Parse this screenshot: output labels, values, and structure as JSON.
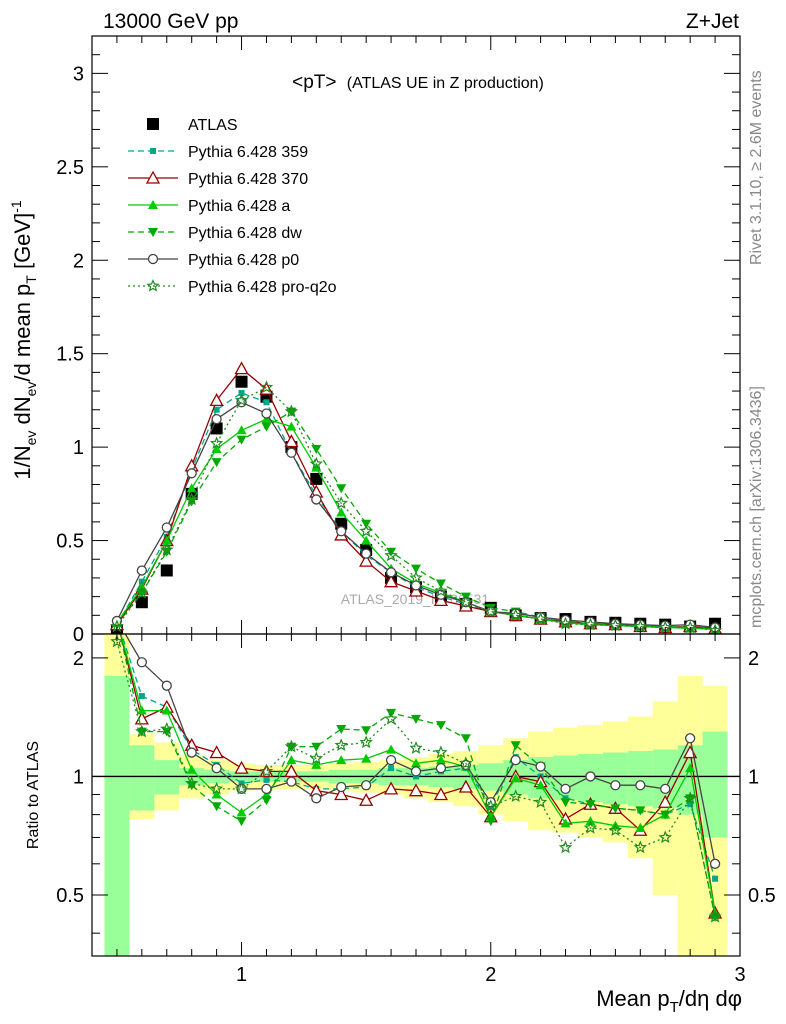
{
  "header": {
    "left": "13000 GeV pp",
    "right": "Z+Jet"
  },
  "side_labels": {
    "rivet": "Rivet 3.1.10, ≥ 2.6M events",
    "mcplots": "mcplots.cern.ch [arXiv:1306.3436]"
  },
  "watermark": "ATLAS_2019_I1736531",
  "chart_data": [
    {
      "type": "scatter",
      "panel": "main",
      "title": "<pT>",
      "subtitle": "(ATLAS UE in Z production)",
      "ylabel": "1/N_ev dN_ev/d mean p_T [GeV]^-1",
      "xlim": [
        0.4,
        3.0
      ],
      "ylim": [
        0,
        3.2
      ],
      "yticks": [
        "0",
        "0.5",
        "1",
        "1.5",
        "2",
        "2.5",
        "3"
      ],
      "legend_position": "top-left",
      "x": [
        0.5,
        0.6,
        0.7,
        0.8,
        0.9,
        1.0,
        1.1,
        1.2,
        1.3,
        1.4,
        1.5,
        1.6,
        1.7,
        1.8,
        1.9,
        2.0,
        2.1,
        2.2,
        2.3,
        2.4,
        2.5,
        2.6,
        2.7,
        2.8,
        2.9
      ],
      "series": [
        {
          "name": "ATLAS",
          "color": "#000000",
          "marker": "square",
          "line": "none",
          "values": [
            0.02,
            0.17,
            0.34,
            0.75,
            1.1,
            1.35,
            1.27,
            1.0,
            0.83,
            0.59,
            0.45,
            0.3,
            0.25,
            0.2,
            0.16,
            0.14,
            0.1,
            0.085,
            0.08,
            0.065,
            0.06,
            0.055,
            0.05,
            0.04,
            0.055
          ]
        },
        {
          "name": "Pythia 6.428 359",
          "color": "#00a88a",
          "marker": "square-small",
          "line": "dashed",
          "values": [
            0.05,
            0.28,
            0.52,
            0.88,
            1.2,
            1.29,
            1.24,
            0.97,
            0.74,
            0.55,
            0.42,
            0.33,
            0.25,
            0.2,
            0.16,
            0.12,
            0.1,
            0.08,
            0.07,
            0.055,
            0.05,
            0.045,
            0.04,
            0.035,
            0.03
          ]
        },
        {
          "name": "Pythia 6.428 370",
          "color": "#990000",
          "marker": "triangle-open",
          "line": "solid",
          "values": [
            0.05,
            0.24,
            0.5,
            0.9,
            1.25,
            1.42,
            1.31,
            1.03,
            0.76,
            0.53,
            0.39,
            0.28,
            0.23,
            0.18,
            0.15,
            0.12,
            0.1,
            0.08,
            0.065,
            0.055,
            0.05,
            0.04,
            0.035,
            0.04,
            0.03
          ]
        },
        {
          "name": "Pythia 6.428 a",
          "color": "#00cc00",
          "marker": "triangle",
          "line": "solid",
          "values": [
            0.06,
            0.25,
            0.5,
            0.78,
            0.99,
            1.09,
            1.15,
            1.11,
            0.89,
            0.65,
            0.5,
            0.35,
            0.27,
            0.22,
            0.17,
            0.12,
            0.1,
            0.08,
            0.06,
            0.05,
            0.045,
            0.04,
            0.035,
            0.03,
            0.025
          ]
        },
        {
          "name": "Pythia 6.428 dw",
          "color": "#00aa00",
          "marker": "triangle-down",
          "line": "dashed",
          "values": [
            0.05,
            0.22,
            0.44,
            0.71,
            0.92,
            1.04,
            1.11,
            1.19,
            0.99,
            0.78,
            0.59,
            0.44,
            0.35,
            0.27,
            0.2,
            0.14,
            0.12,
            0.09,
            0.07,
            0.055,
            0.05,
            0.045,
            0.04,
            0.035,
            0.03
          ]
        },
        {
          "name": "Pythia 6.428 p0",
          "color": "#444444",
          "marker": "circle-open",
          "line": "solid",
          "values": [
            0.07,
            0.34,
            0.57,
            0.86,
            1.15,
            1.24,
            1.18,
            0.97,
            0.72,
            0.55,
            0.43,
            0.33,
            0.26,
            0.21,
            0.17,
            0.12,
            0.11,
            0.09,
            0.075,
            0.065,
            0.055,
            0.05,
            0.045,
            0.05,
            0.035
          ]
        },
        {
          "name": "Pythia 6.428 pro-q2o",
          "color": "#228b22",
          "marker": "star",
          "line": "dotted",
          "values": [
            0.04,
            0.22,
            0.45,
            0.72,
            1.02,
            1.25,
            1.32,
            1.19,
            0.91,
            0.7,
            0.55,
            0.42,
            0.3,
            0.23,
            0.17,
            0.12,
            0.1,
            0.08,
            0.055,
            0.05,
            0.045,
            0.04,
            0.035,
            0.035,
            0.02
          ]
        }
      ]
    },
    {
      "type": "line",
      "panel": "ratio",
      "ylabel": "Ratio to ATLAS",
      "xlabel": "Mean p_T/dη dφ",
      "xlim": [
        0.4,
        3.0
      ],
      "ylim": [
        0.35,
        2.3
      ],
      "log_y": true,
      "yticks": [
        "0.5",
        "1",
        "2"
      ],
      "xticks": [
        "1",
        "2",
        "3"
      ],
      "band_edges": [
        0.45,
        0.55,
        0.65,
        0.75,
        0.85,
        0.95,
        1.05,
        1.15,
        1.25,
        1.35,
        1.45,
        1.55,
        1.65,
        1.75,
        1.85,
        1.95,
        2.05,
        2.15,
        2.25,
        2.35,
        2.45,
        2.55,
        2.65,
        2.75,
        2.85,
        2.95
      ],
      "band_inner": {
        "color": "#99ff99",
        "lo": [
          0.3,
          0.82,
          0.9,
          0.95,
          0.96,
          0.97,
          0.97,
          0.97,
          0.97,
          0.96,
          0.96,
          0.95,
          0.95,
          0.94,
          0.93,
          0.92,
          0.9,
          0.88,
          0.87,
          0.86,
          0.85,
          0.84,
          0.83,
          0.8,
          0.7
        ],
        "hi": [
          1.8,
          1.2,
          1.1,
          1.05,
          1.04,
          1.03,
          1.03,
          1.03,
          1.03,
          1.04,
          1.04,
          1.05,
          1.05,
          1.06,
          1.07,
          1.08,
          1.1,
          1.12,
          1.13,
          1.14,
          1.15,
          1.16,
          1.17,
          1.2,
          1.3
        ]
      },
      "band_outer": {
        "color": "#ffff99",
        "lo": [
          0.3,
          0.78,
          0.82,
          0.88,
          0.9,
          0.92,
          0.93,
          0.93,
          0.93,
          0.92,
          0.91,
          0.9,
          0.88,
          0.86,
          0.84,
          0.8,
          0.77,
          0.73,
          0.72,
          0.7,
          0.68,
          0.62,
          0.5,
          0.3,
          0.3
        ],
        "hi": [
          2.3,
          1.28,
          1.22,
          1.13,
          1.1,
          1.08,
          1.07,
          1.07,
          1.07,
          1.08,
          1.09,
          1.1,
          1.12,
          1.14,
          1.16,
          1.2,
          1.25,
          1.3,
          1.33,
          1.35,
          1.38,
          1.42,
          1.55,
          1.8,
          1.7
        ]
      },
      "x": [
        0.5,
        0.6,
        0.7,
        0.8,
        0.9,
        1.0,
        1.1,
        1.2,
        1.3,
        1.4,
        1.5,
        1.6,
        1.7,
        1.8,
        1.9,
        2.0,
        2.1,
        2.2,
        2.3,
        2.4,
        2.5,
        2.6,
        2.7,
        2.8,
        2.9
      ],
      "series": [
        {
          "name": "Pythia 6.428 359",
          "color": "#00a88a",
          "marker": "square-small",
          "line": "dashed",
          "values": [
            2.5,
            1.6,
            1.5,
            1.17,
            1.07,
            0.96,
            0.98,
            0.97,
            0.93,
            0.93,
            0.94,
            1.05,
            1.0,
            1.03,
            1.05,
            0.84,
            1.12,
            1.0,
            0.88,
            0.85,
            0.83,
            0.82,
            0.8,
            0.85,
            0.55
          ]
        },
        {
          "name": "Pythia 6.428 370",
          "color": "#990000",
          "marker": "triangle-open",
          "line": "solid",
          "values": [
            2.5,
            1.4,
            1.5,
            1.2,
            1.15,
            1.05,
            1.03,
            1.03,
            0.92,
            0.9,
            0.87,
            0.93,
            0.92,
            0.9,
            0.94,
            0.79,
            1.0,
            0.97,
            0.78,
            0.85,
            0.83,
            0.73,
            0.86,
            1.15,
            0.45
          ]
        },
        {
          "name": "Pythia 6.428 a",
          "color": "#00cc00",
          "marker": "triangle",
          "line": "solid",
          "values": [
            2.5,
            1.47,
            1.47,
            1.04,
            0.9,
            0.81,
            0.9,
            1.1,
            1.07,
            1.1,
            1.11,
            1.17,
            1.08,
            1.1,
            1.06,
            0.79,
            0.99,
            0.95,
            0.76,
            0.77,
            0.75,
            0.74,
            0.8,
            1.05,
            0.45
          ]
        },
        {
          "name": "Pythia 6.428 dw",
          "color": "#00aa00",
          "marker": "triangle-down",
          "line": "dashed",
          "values": [
            2.5,
            1.3,
            1.3,
            0.95,
            0.84,
            0.77,
            0.87,
            1.19,
            1.19,
            1.32,
            1.31,
            1.45,
            1.4,
            1.35,
            1.25,
            0.77,
            1.2,
            1.06,
            0.86,
            0.85,
            0.83,
            0.82,
            0.8,
            0.88,
            0.44
          ]
        },
        {
          "name": "Pythia 6.428 p0",
          "color": "#444444",
          "marker": "circle-open",
          "line": "solid",
          "values": [
            2.5,
            1.95,
            1.7,
            1.15,
            1.05,
            0.93,
            0.93,
            0.97,
            0.88,
            0.94,
            0.95,
            1.1,
            1.03,
            1.05,
            1.07,
            0.86,
            1.1,
            1.06,
            0.93,
            1.0,
            0.95,
            0.95,
            0.93,
            1.25,
            0.6
          ]
        },
        {
          "name": "Pythia 6.428 pro-q2o",
          "color": "#228b22",
          "marker": "star",
          "line": "dotted",
          "values": [
            2.2,
            1.3,
            1.32,
            0.96,
            0.93,
            0.93,
            1.03,
            1.19,
            1.11,
            1.2,
            1.22,
            1.4,
            1.18,
            1.15,
            1.08,
            0.84,
            0.89,
            0.86,
            0.66,
            0.74,
            0.73,
            0.66,
            0.7,
            0.88,
            0.44
          ]
        }
      ]
    }
  ]
}
